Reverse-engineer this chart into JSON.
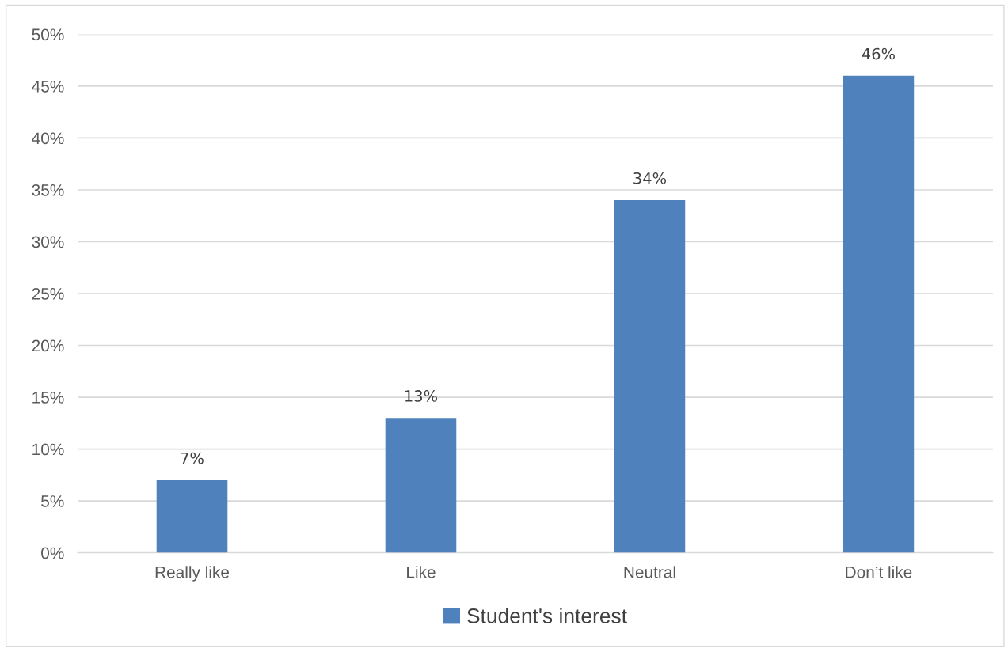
{
  "chart_data": {
    "type": "bar",
    "categories": [
      "Really like",
      "Like",
      "Neutral",
      "Don’t like"
    ],
    "series": [
      {
        "name": "Student's interest",
        "color": "#4f81bd",
        "values": [
          7,
          13,
          34,
          46
        ],
        "value_labels": [
          "7%",
          "13%",
          "34%",
          "46%"
        ]
      }
    ],
    "ylim": [
      0,
      50
    ],
    "yticks": [
      {
        "value": 0,
        "label": "0%"
      },
      {
        "value": 5,
        "label": "5%"
      },
      {
        "value": 10,
        "label": "10%"
      },
      {
        "value": 15,
        "label": "15%"
      },
      {
        "value": 20,
        "label": "20%"
      },
      {
        "value": 25,
        "label": "25%"
      },
      {
        "value": 30,
        "label": "30%"
      },
      {
        "value": 35,
        "label": "35%"
      },
      {
        "value": 40,
        "label": "40%"
      },
      {
        "value": 45,
        "label": "45%"
      },
      {
        "value": 50,
        "label": "50%"
      }
    ],
    "grid": "y",
    "legend": "bottom"
  }
}
